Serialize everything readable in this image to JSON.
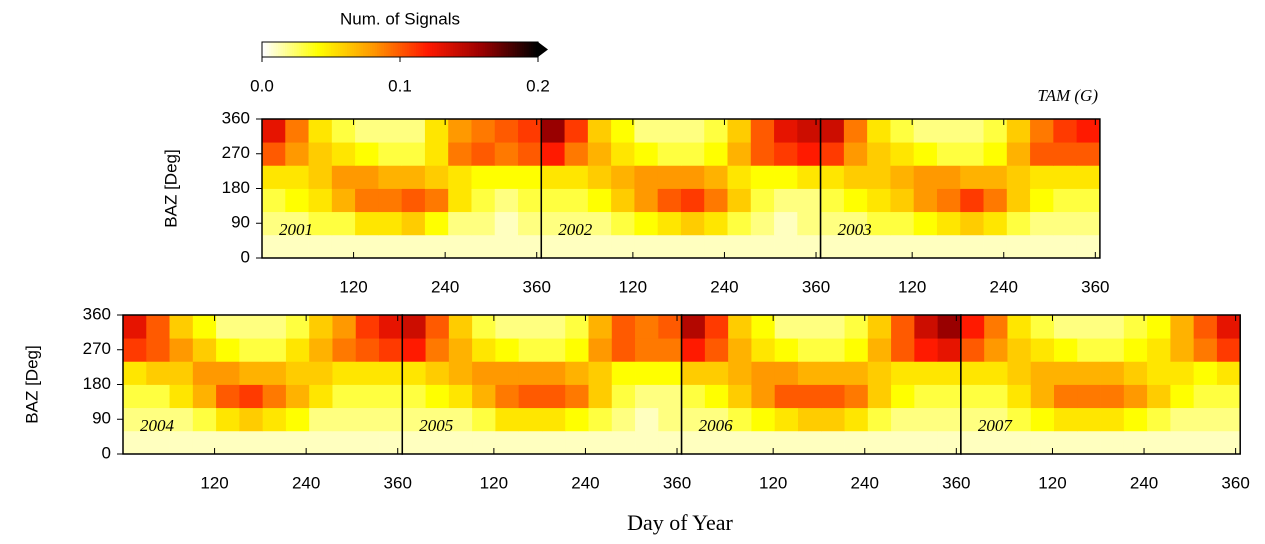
{
  "colorbar": {
    "title": "Num. of Signals",
    "lim": [
      0,
      0.2
    ],
    "ticks": [
      {
        "value": 0,
        "label": "0.0"
      },
      {
        "value": 0.1,
        "label": "0.1"
      },
      {
        "value": 0.2,
        "label": "0.2"
      }
    ],
    "colors": [
      "#ffffff",
      "#ffff00",
      "#ff9900",
      "#ff1a00",
      "#990000",
      "#000000"
    ]
  },
  "station": "TAM (G)",
  "xlabel": "Day of Year",
  "chart_data": [
    {
      "type": "heatmap",
      "annotation": "2001",
      "ylabel": "BAZ [Deg]",
      "xlim": [
        0,
        366
      ],
      "ylim": [
        0,
        360
      ],
      "xticks": [
        120,
        240,
        360
      ],
      "yticks": [
        0,
        90,
        180,
        270,
        360
      ],
      "values": [
        [
          0.01,
          0.01,
          0.01,
          0.01,
          0.01,
          0.01,
          0.01,
          0.01,
          0.01,
          0.01,
          0.01,
          0.01
        ],
        [
          0.02,
          0.02,
          0.03,
          0.03,
          0.05,
          0.05,
          0.06,
          0.04,
          0.02,
          0.02,
          0.01,
          0.02
        ],
        [
          0.03,
          0.04,
          0.05,
          0.07,
          0.09,
          0.09,
          0.1,
          0.09,
          0.05,
          0.03,
          0.02,
          0.03
        ],
        [
          0.05,
          0.05,
          0.06,
          0.08,
          0.08,
          0.07,
          0.07,
          0.06,
          0.05,
          0.04,
          0.04,
          0.04
        ],
        [
          0.1,
          0.08,
          0.06,
          0.05,
          0.04,
          0.03,
          0.03,
          0.05,
          0.09,
          0.1,
          0.09,
          0.1
        ],
        [
          0.13,
          0.09,
          0.05,
          0.03,
          0.02,
          0.02,
          0.02,
          0.05,
          0.08,
          0.09,
          0.1,
          0.11
        ]
      ]
    },
    {
      "type": "heatmap",
      "annotation": "2002",
      "xlim": [
        0,
        366
      ],
      "ylim": [
        0,
        360
      ],
      "xticks": [
        120,
        240,
        360
      ],
      "values": [
        [
          0.01,
          0.01,
          0.01,
          0.01,
          0.01,
          0.01,
          0.01,
          0.01,
          0.01,
          0.01,
          0.01,
          0.01
        ],
        [
          0.02,
          0.02,
          0.02,
          0.03,
          0.04,
          0.05,
          0.06,
          0.05,
          0.03,
          0.02,
          0.01,
          0.02
        ],
        [
          0.03,
          0.03,
          0.04,
          0.06,
          0.08,
          0.1,
          0.11,
          0.09,
          0.06,
          0.03,
          0.02,
          0.02
        ],
        [
          0.05,
          0.05,
          0.06,
          0.07,
          0.08,
          0.08,
          0.08,
          0.07,
          0.05,
          0.04,
          0.04,
          0.05
        ],
        [
          0.12,
          0.09,
          0.07,
          0.05,
          0.04,
          0.03,
          0.03,
          0.04,
          0.07,
          0.1,
          0.11,
          0.12
        ],
        [
          0.16,
          0.11,
          0.06,
          0.04,
          0.02,
          0.02,
          0.02,
          0.03,
          0.06,
          0.1,
          0.13,
          0.14
        ]
      ]
    },
    {
      "type": "heatmap",
      "annotation": "2003",
      "xlim": [
        0,
        366
      ],
      "ylim": [
        0,
        360
      ],
      "xticks": [
        120,
        240,
        360
      ],
      "values": [
        [
          0.01,
          0.01,
          0.01,
          0.01,
          0.01,
          0.01,
          0.01,
          0.01,
          0.01,
          0.01,
          0.01,
          0.01
        ],
        [
          0.02,
          0.02,
          0.03,
          0.03,
          0.04,
          0.05,
          0.06,
          0.05,
          0.03,
          0.02,
          0.02,
          0.02
        ],
        [
          0.03,
          0.04,
          0.05,
          0.06,
          0.08,
          0.09,
          0.11,
          0.09,
          0.06,
          0.04,
          0.03,
          0.03
        ],
        [
          0.05,
          0.06,
          0.06,
          0.07,
          0.08,
          0.08,
          0.07,
          0.07,
          0.06,
          0.05,
          0.05,
          0.05
        ],
        [
          0.11,
          0.08,
          0.06,
          0.05,
          0.04,
          0.03,
          0.03,
          0.04,
          0.07,
          0.1,
          0.1,
          0.1
        ],
        [
          0.14,
          0.09,
          0.05,
          0.03,
          0.02,
          0.02,
          0.02,
          0.03,
          0.06,
          0.09,
          0.11,
          0.12
        ]
      ]
    },
    {
      "type": "heatmap",
      "annotation": "2004",
      "ylabel": "BAZ [Deg]",
      "xlim": [
        0,
        366
      ],
      "ylim": [
        0,
        360
      ],
      "xticks": [
        120,
        240,
        360
      ],
      "yticks": [
        0,
        90,
        180,
        270,
        360
      ],
      "values": [
        [
          0.01,
          0.01,
          0.01,
          0.01,
          0.01,
          0.01,
          0.01,
          0.01,
          0.01,
          0.01,
          0.01,
          0.01
        ],
        [
          0.02,
          0.02,
          0.02,
          0.03,
          0.05,
          0.06,
          0.05,
          0.04,
          0.02,
          0.02,
          0.02,
          0.02
        ],
        [
          0.03,
          0.03,
          0.05,
          0.07,
          0.1,
          0.11,
          0.09,
          0.07,
          0.05,
          0.03,
          0.03,
          0.03
        ],
        [
          0.05,
          0.06,
          0.06,
          0.08,
          0.08,
          0.07,
          0.07,
          0.06,
          0.06,
          0.05,
          0.05,
          0.05
        ],
        [
          0.11,
          0.1,
          0.08,
          0.06,
          0.04,
          0.03,
          0.03,
          0.05,
          0.07,
          0.09,
          0.1,
          0.11
        ],
        [
          0.13,
          0.1,
          0.06,
          0.04,
          0.02,
          0.02,
          0.02,
          0.03,
          0.06,
          0.08,
          0.11,
          0.13
        ]
      ]
    },
    {
      "type": "heatmap",
      "annotation": "2005",
      "xlim": [
        0,
        366
      ],
      "ylim": [
        0,
        360
      ],
      "xticks": [
        120,
        240,
        360
      ],
      "values": [
        [
          0.01,
          0.01,
          0.01,
          0.01,
          0.01,
          0.01,
          0.01,
          0.01,
          0.01,
          0.01,
          0.01,
          0.01
        ],
        [
          0.02,
          0.02,
          0.02,
          0.03,
          0.05,
          0.05,
          0.05,
          0.04,
          0.03,
          0.02,
          0.01,
          0.02
        ],
        [
          0.03,
          0.04,
          0.05,
          0.07,
          0.09,
          0.1,
          0.1,
          0.09,
          0.06,
          0.03,
          0.02,
          0.02
        ],
        [
          0.05,
          0.06,
          0.07,
          0.08,
          0.08,
          0.08,
          0.08,
          0.07,
          0.06,
          0.04,
          0.04,
          0.04
        ],
        [
          0.12,
          0.09,
          0.07,
          0.05,
          0.04,
          0.03,
          0.03,
          0.04,
          0.08,
          0.1,
          0.09,
          0.09
        ],
        [
          0.14,
          0.1,
          0.06,
          0.03,
          0.02,
          0.02,
          0.02,
          0.03,
          0.07,
          0.1,
          0.09,
          0.1
        ]
      ]
    },
    {
      "type": "heatmap",
      "annotation": "2006",
      "xlim": [
        0,
        366
      ],
      "ylim": [
        0,
        360
      ],
      "xticks": [
        120,
        240,
        360
      ],
      "values": [
        [
          0.01,
          0.01,
          0.01,
          0.01,
          0.01,
          0.01,
          0.01,
          0.01,
          0.01,
          0.01,
          0.01,
          0.01
        ],
        [
          0.02,
          0.02,
          0.03,
          0.04,
          0.05,
          0.06,
          0.06,
          0.05,
          0.03,
          0.02,
          0.02,
          0.02
        ],
        [
          0.03,
          0.04,
          0.06,
          0.08,
          0.1,
          0.1,
          0.1,
          0.09,
          0.06,
          0.04,
          0.03,
          0.03
        ],
        [
          0.06,
          0.06,
          0.07,
          0.08,
          0.08,
          0.07,
          0.07,
          0.07,
          0.06,
          0.05,
          0.05,
          0.05
        ],
        [
          0.12,
          0.1,
          0.07,
          0.05,
          0.04,
          0.03,
          0.03,
          0.04,
          0.07,
          0.1,
          0.12,
          0.13
        ],
        [
          0.15,
          0.11,
          0.06,
          0.04,
          0.02,
          0.02,
          0.02,
          0.03,
          0.06,
          0.1,
          0.14,
          0.16
        ]
      ]
    },
    {
      "type": "heatmap",
      "annotation": "2007",
      "xlim": [
        0,
        366
      ],
      "ylim": [
        0,
        360
      ],
      "xticks": [
        120,
        240,
        360
      ],
      "values": [
        [
          0.01,
          0.01,
          0.01,
          0.01,
          0.01,
          0.01,
          0.01,
          0.01,
          0.01,
          0.01,
          0.01,
          0.01
        ],
        [
          0.02,
          0.02,
          0.03,
          0.04,
          0.05,
          0.05,
          0.05,
          0.04,
          0.03,
          0.02,
          0.02,
          0.02
        ],
        [
          0.03,
          0.03,
          0.05,
          0.07,
          0.09,
          0.09,
          0.09,
          0.08,
          0.06,
          0.04,
          0.03,
          0.03
        ],
        [
          0.05,
          0.05,
          0.06,
          0.07,
          0.07,
          0.07,
          0.07,
          0.06,
          0.05,
          0.05,
          0.04,
          0.05
        ],
        [
          0.1,
          0.08,
          0.06,
          0.05,
          0.04,
          0.03,
          0.03,
          0.04,
          0.05,
          0.07,
          0.09,
          0.11
        ],
        [
          0.12,
          0.09,
          0.05,
          0.03,
          0.02,
          0.02,
          0.02,
          0.03,
          0.04,
          0.07,
          0.1,
          0.13
        ]
      ]
    }
  ]
}
